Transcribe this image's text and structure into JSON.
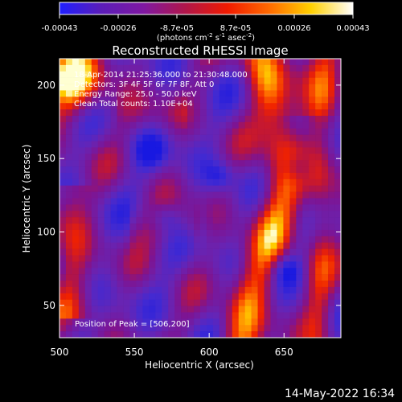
{
  "chart_data": {
    "type": "heatmap",
    "title": "Reconstructed RHESSI Image",
    "xlabel": "Heliocentric X (arcsec)",
    "ylabel": "Heliocentric Y (arcsec)",
    "x_ticks": [
      "500",
      "550",
      "600",
      "650"
    ],
    "y_ticks": [
      "50",
      "100",
      "150",
      "200"
    ],
    "xlim": [
      500,
      688
    ],
    "ylim": [
      28,
      218
    ],
    "colorbar": {
      "colors": [
        "#1f1fff",
        "#5b1db8",
        "#7f18a2",
        "#b0164a",
        "#f01a00",
        "#ff6a00",
        "#ffd000",
        "#ffffff"
      ],
      "ticks": [
        "-0.00043",
        "-0.00026",
        "-8.7e-05",
        "8.7e-05",
        "0.00026",
        "0.00043"
      ],
      "units_label": "(photons cm",
      "units_exponents": [
        "-2",
        "-1",
        "-2"
      ],
      "units_mid": [
        " s",
        " asec",
        ")"
      ]
    },
    "annotations": {
      "time_range": "18-Apr-2014 21:25:36.000 to 21:30:48.000",
      "detectors": "Detectors: 3F 4F 5F 6F 7F 8F, Att 0",
      "energy_range": "Energy Range: 25.0 - 50.0 keV",
      "clean": "Clean    Total counts: 1.10E+04",
      "peak": "Position of Peak = [506,200]"
    }
  },
  "footer": {
    "date": "14-May-2022 16:34"
  }
}
